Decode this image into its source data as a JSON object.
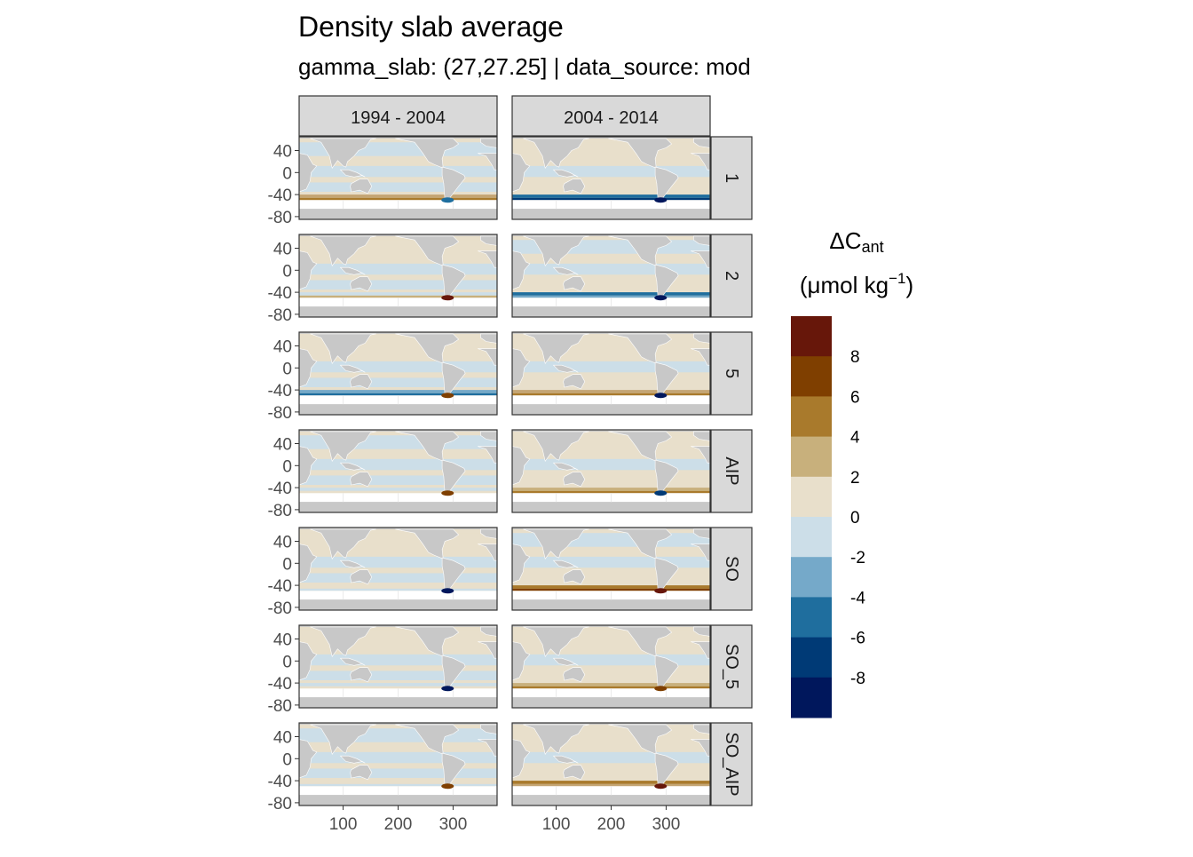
{
  "chart_data": {
    "type": "heatmap",
    "title": "Density slab average",
    "subtitle": "gamma_slab: (27,27.25] | data_source: mod",
    "facet_columns": [
      "1994 - 2004",
      "2004 - 2014"
    ],
    "facet_rows": [
      "1",
      "2",
      "5",
      "AIP",
      "SO",
      "SO_5",
      "SO_AIP"
    ],
    "x_ticks": [
      100,
      200,
      300
    ],
    "y_ticks": [
      40,
      0,
      -40,
      -80
    ],
    "x_tick_labels": [
      "100",
      "200",
      "300"
    ],
    "y_tick_labels": [
      "40",
      "0",
      "-40",
      "-80"
    ],
    "xlim": [
      20,
      380
    ],
    "ylim": [
      -85,
      65
    ],
    "legend": {
      "placement": "right",
      "title_main": "ΔC",
      "title_sub": "ant",
      "unit_pre": "(μmol kg",
      "unit_sup": "−1",
      "unit_post": ")",
      "bins": [
        {
          "from": 8,
          "to": 10,
          "color": "#67170a"
        },
        {
          "from": 6,
          "to": 8,
          "color": "#7f3f00"
        },
        {
          "from": 4,
          "to": 6,
          "color": "#a97a2c"
        },
        {
          "from": 2,
          "to": 4,
          "color": "#c8b07c"
        },
        {
          "from": 0,
          "to": 2,
          "color": "#e8dfcb"
        },
        {
          "from": -2,
          "to": 0,
          "color": "#ccdee8"
        },
        {
          "from": -4,
          "to": -2,
          "color": "#75a9c9"
        },
        {
          "from": -6,
          "to": -4,
          "color": "#1f6e9e"
        },
        {
          "from": -8,
          "to": -6,
          "color": "#003a76"
        },
        {
          "from": -10,
          "to": -8,
          "color": "#00175c"
        }
      ],
      "tick_labels": [
        "8",
        "6",
        "4",
        "2",
        "0",
        "-2",
        "-4",
        "-6",
        "-8"
      ],
      "tick_values": [
        8,
        6,
        4,
        2,
        0,
        -2,
        -4,
        -6,
        -8
      ]
    },
    "land_color": "#c8c8c8",
    "no_data_color": "#ffffff",
    "panels": [
      {
        "period": "1994 - 2004",
        "row": "1",
        "south": "#c4a574",
        "south2": "#a97a2c",
        "spot": "#1f6e9e"
      },
      {
        "period": "2004 - 2014",
        "row": "1",
        "south": "#1f6e9e",
        "south2": "#003a76",
        "spot": "#00175c"
      },
      {
        "period": "1994 - 2004",
        "row": "2",
        "south": "#ccdee8",
        "south2": "#c8b07c",
        "spot": "#67170a"
      },
      {
        "period": "2004 - 2014",
        "row": "2",
        "south": "#1f6e9e",
        "south2": "#75a9c9",
        "spot": "#00175c"
      },
      {
        "period": "1994 - 2004",
        "row": "5",
        "south": "#75a9c9",
        "south2": "#1f6e9e",
        "spot": "#7f3f00"
      },
      {
        "period": "2004 - 2014",
        "row": "5",
        "south": "#c4a574",
        "south2": "#a97a2c",
        "spot": "#00175c"
      },
      {
        "period": "1994 - 2004",
        "row": "AIP",
        "south": "#ccdee8",
        "south2": "#e8dfcb",
        "spot": "#7f3f00"
      },
      {
        "period": "2004 - 2014",
        "row": "AIP",
        "south": "#c8b07c",
        "south2": "#a97a2c",
        "spot": "#003a76"
      },
      {
        "period": "1994 - 2004",
        "row": "SO",
        "south": "#e8dfcb",
        "south2": "#ccdee8",
        "spot": "#00175c"
      },
      {
        "period": "2004 - 2014",
        "row": "SO",
        "south": "#a97a2c",
        "south2": "#7f3f00",
        "spot": "#67170a"
      },
      {
        "period": "1994 - 2004",
        "row": "SO_5",
        "south": "#ccdee8",
        "south2": "#e8dfcb",
        "spot": "#00175c"
      },
      {
        "period": "2004 - 2014",
        "row": "SO_5",
        "south": "#c8b07c",
        "south2": "#a97a2c",
        "spot": "#7f3f00"
      },
      {
        "period": "1994 - 2004",
        "row": "SO_AIP",
        "south": "#e8dfcb",
        "south2": "#ccdee8",
        "spot": "#7f3f00"
      },
      {
        "period": "2004 - 2014",
        "row": "SO_AIP",
        "south": "#a97a2c",
        "south2": "#c4a574",
        "spot": "#67170a"
      }
    ]
  }
}
